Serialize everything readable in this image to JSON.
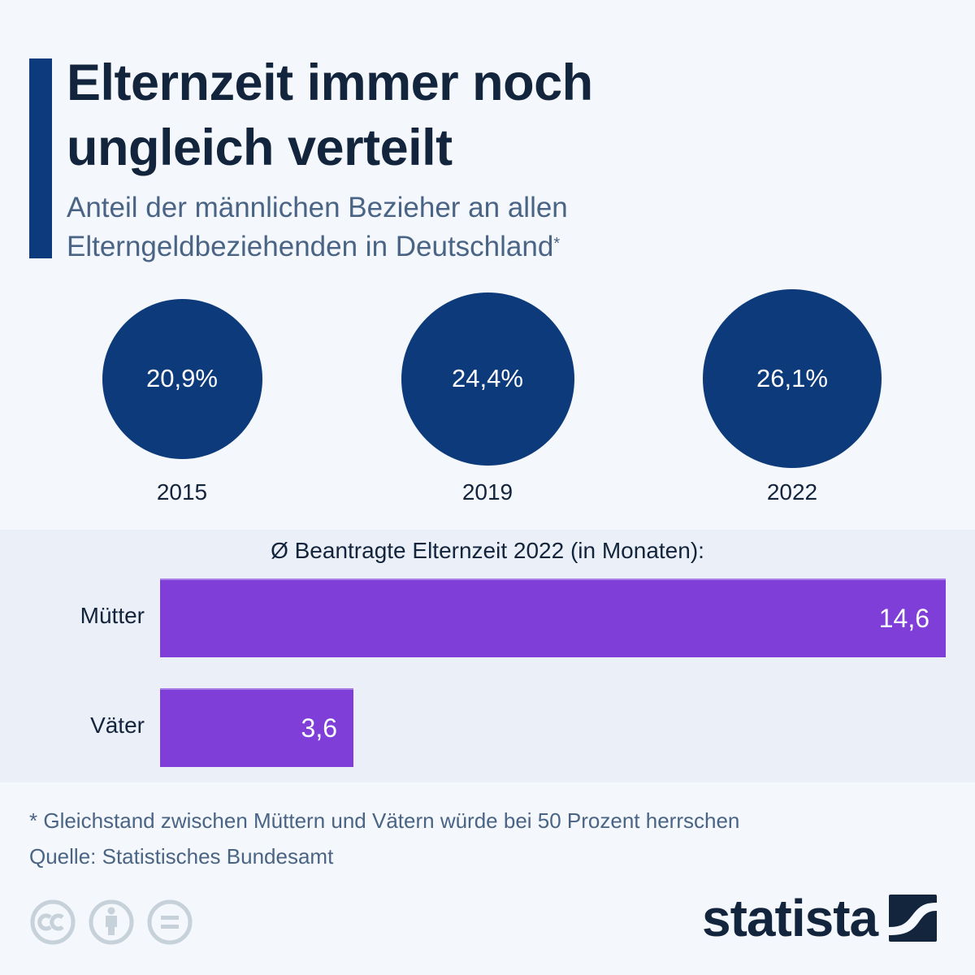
{
  "header": {
    "title_line1": "Elternzeit immer noch",
    "title_line2": "ungleich verteilt",
    "subtitle_line1": "Anteil der männlichen Bezieher an allen",
    "subtitle_line2": "Elterngeldbeziehenden in Deutschland",
    "subtitle_marker": "*"
  },
  "colors": {
    "accent": "#0d3a7c",
    "circle": "#0c3a7b",
    "bar": "#7f3ed8",
    "panel_bg": "#ebeff7",
    "page_bg": "#f4f7fb"
  },
  "chart_data": [
    {
      "type": "bubble",
      "title": "Anteil der männlichen Bezieher an allen Elterngeldbeziehenden in Deutschland",
      "unit": "%",
      "categories": [
        "2015",
        "2019",
        "2022"
      ],
      "values": [
        20.9,
        24.4,
        26.1
      ],
      "labels": [
        "20,9%",
        "24,4%",
        "26,1%"
      ]
    },
    {
      "type": "bar",
      "orientation": "horizontal",
      "title": "Ø Beantragte Elternzeit 2022 (in Monaten):",
      "categories": [
        "Mütter",
        "Väter"
      ],
      "values": [
        14.6,
        3.6
      ],
      "labels": [
        "14,6",
        "3,6"
      ],
      "xlim": [
        0,
        14.6
      ],
      "grid": false
    }
  ],
  "footer": {
    "note": "* Gleichstand zwischen Müttern und Vätern würde bei 50 Prozent herrschen",
    "source": "Quelle: Statistisches Bundesamt",
    "license_icons": [
      "cc-icon",
      "attribution-icon",
      "no-derivatives-icon"
    ],
    "brand": "statista"
  }
}
